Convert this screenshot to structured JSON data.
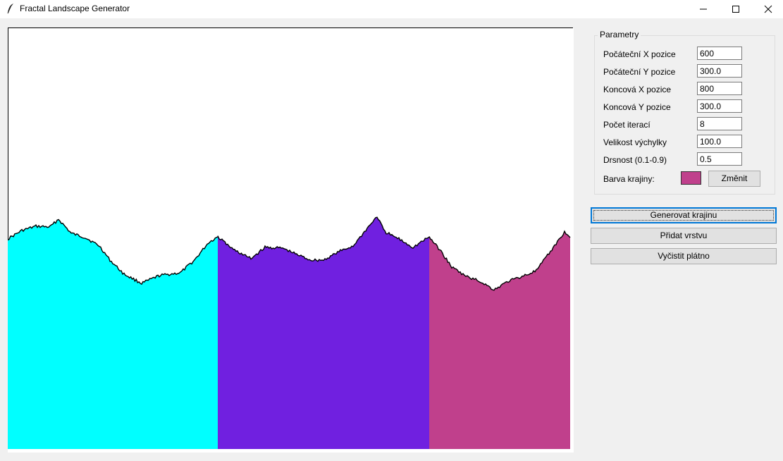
{
  "window": {
    "title": "Fractal Landscape Generator"
  },
  "params": {
    "group_title": "Parametry",
    "rows": [
      {
        "label": "Počáteční X pozice",
        "value": "600"
      },
      {
        "label": "Počáteční Y pozice",
        "value": "300.0"
      },
      {
        "label": "Koncová X pozice",
        "value": "800"
      },
      {
        "label": "Koncová Y pozice",
        "value": "300.0"
      },
      {
        "label": "Počet iterací",
        "value": "8"
      },
      {
        "label": "Velikost výchylky",
        "value": "100.0"
      },
      {
        "label": "Drsnost (0.1-0.9)",
        "value": "0.5"
      }
    ],
    "color_label": "Barva krajiny:",
    "color_value": "#c0408c",
    "change_button": "Změnit"
  },
  "actions": {
    "generate": "Generovat krajinu",
    "add_layer": "Přidat vrstvu",
    "clear": "Vyčistit plátno"
  },
  "canvas": {
    "layer_colors": [
      "#00ffff",
      "#7020e0",
      "#c0408c"
    ],
    "outline_color": "#000000"
  }
}
